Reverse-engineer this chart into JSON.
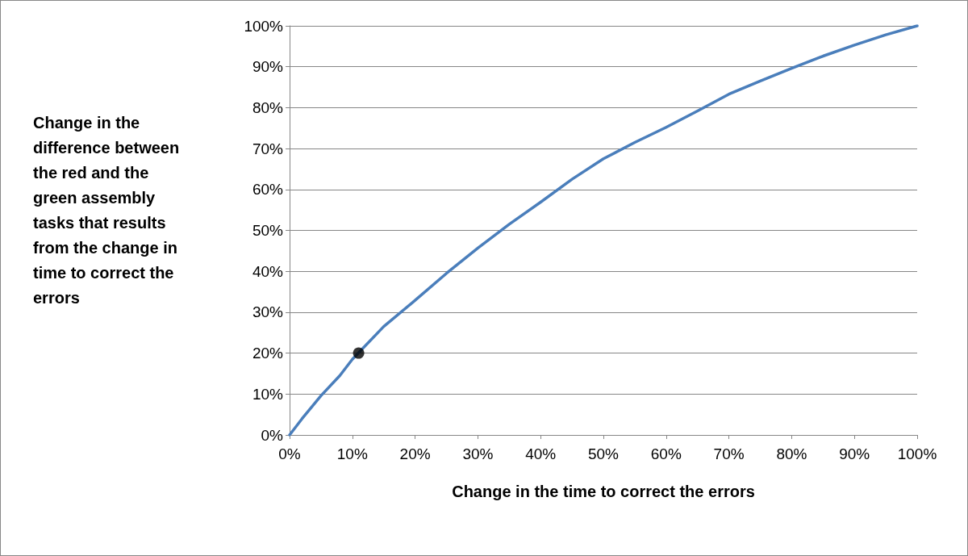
{
  "chart_data": {
    "type": "line",
    "xlabel": "Change in the time to correct the errors",
    "ylabel": "Change in the difference between the red and the green assembly tasks that results from the change in time to correct the errors",
    "series": [
      {
        "type": "line",
        "color": "#4a7ebb",
        "marker": "none",
        "x": [
          0,
          2,
          5,
          8,
          10,
          15,
          20,
          25,
          30,
          35,
          40,
          45,
          50,
          55,
          60,
          65,
          70,
          75,
          80,
          85,
          90,
          95,
          100
        ],
        "values": [
          0,
          4,
          9.6,
          14.5,
          18.5,
          26.5,
          32.9,
          39.5,
          45.7,
          51.5,
          56.9,
          62.5,
          67.5,
          71.5,
          75.2,
          79.2,
          83.3,
          86.5,
          89.6,
          92.6,
          95.3,
          97.8,
          100
        ]
      },
      {
        "type": "scatter",
        "color": "#000000",
        "marker": "circle",
        "x": [
          11
        ],
        "values": [
          20
        ]
      }
    ],
    "xlim": [
      0,
      100
    ],
    "ylim": [
      0,
      100
    ],
    "xticks": [
      {
        "value": 0,
        "label": "0%"
      },
      {
        "value": 10,
        "label": "10%"
      },
      {
        "value": 20,
        "label": "20%"
      },
      {
        "value": 30,
        "label": "30%"
      },
      {
        "value": 40,
        "label": "40%"
      },
      {
        "value": 50,
        "label": "50%"
      },
      {
        "value": 60,
        "label": "60%"
      },
      {
        "value": 70,
        "label": "70%"
      },
      {
        "value": 80,
        "label": "80%"
      },
      {
        "value": 90,
        "label": "90%"
      },
      {
        "value": 100,
        "label": "100%"
      }
    ],
    "yticks": [
      {
        "value": 0,
        "label": "0%"
      },
      {
        "value": 10,
        "label": "10%"
      },
      {
        "value": 20,
        "label": "20%"
      },
      {
        "value": 30,
        "label": "30%"
      },
      {
        "value": 40,
        "label": "40%"
      },
      {
        "value": 50,
        "label": "50%"
      },
      {
        "value": 60,
        "label": "60%"
      },
      {
        "value": 70,
        "label": "70%"
      },
      {
        "value": 80,
        "label": "80%"
      },
      {
        "value": 90,
        "label": "90%"
      },
      {
        "value": 100,
        "label": "100%"
      }
    ],
    "grid": "y"
  }
}
